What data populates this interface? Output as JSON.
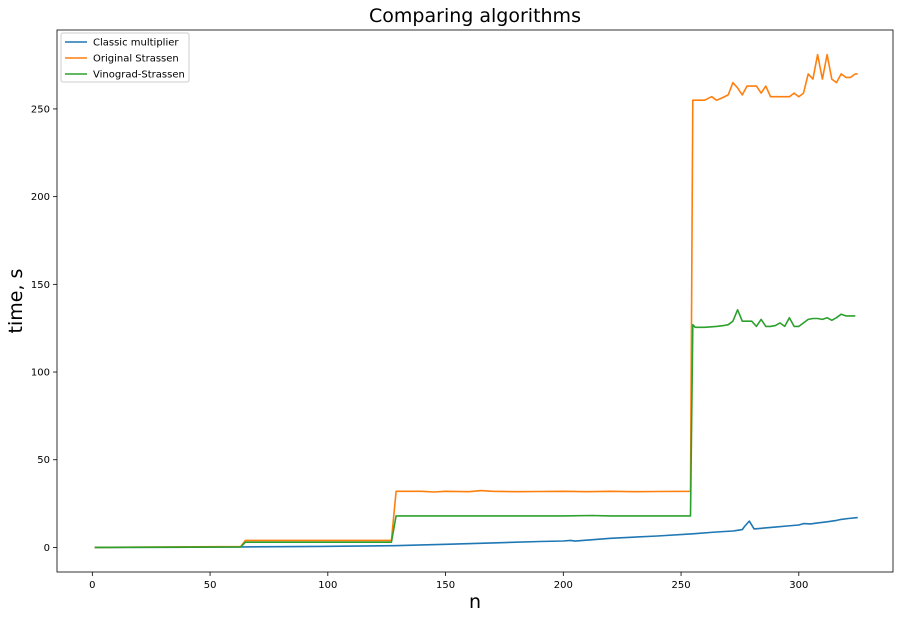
{
  "chart_data": {
    "type": "line",
    "title": "Comparing algorithms",
    "xlabel": "n",
    "ylabel": "time, s",
    "xlim": [
      -15,
      340
    ],
    "ylim": [
      -14,
      295
    ],
    "xticks": [
      0,
      50,
      100,
      150,
      200,
      250,
      300
    ],
    "yticks": [
      0,
      50,
      100,
      150,
      200,
      250
    ],
    "grid": false,
    "legend": "top-left",
    "series": [
      {
        "name": "Classic multiplier",
        "color": "#1f77b4",
        "x": [
          1,
          32,
          64,
          96,
          128,
          150,
          170,
          190,
          200,
          203,
          205,
          220,
          240,
          255,
          265,
          272,
          274,
          276,
          277,
          279,
          281,
          285,
          290,
          295,
          300,
          302,
          305,
          308,
          312,
          316,
          318,
          321,
          325
        ],
        "y": [
          0,
          0.1,
          0.3,
          0.6,
          1.0,
          1.8,
          2.6,
          3.4,
          3.7,
          4.0,
          3.6,
          5.2,
          6.5,
          7.8,
          8.8,
          9.4,
          9.8,
          10.2,
          12.0,
          15.0,
          10.6,
          11.0,
          11.6,
          12.2,
          12.8,
          13.6,
          13.4,
          14.0,
          14.6,
          15.4,
          16.0,
          16.5,
          17.0
        ]
      },
      {
        "name": "Original Strassen",
        "color": "#ff7f0e",
        "x": [
          1,
          63,
          65,
          127,
          129,
          140,
          145,
          150,
          160,
          165,
          170,
          180,
          190,
          200,
          210,
          220,
          230,
          240,
          254,
          255,
          256,
          260,
          263,
          265,
          267,
          270,
          272,
          274,
          276,
          278,
          280,
          282,
          284,
          286,
          288,
          290,
          292,
          294,
          296,
          298,
          300,
          302,
          304,
          306,
          308,
          310,
          312,
          314,
          316,
          318,
          320,
          322,
          324,
          325
        ],
        "y": [
          0,
          0.5,
          4.0,
          4.0,
          32.0,
          32.0,
          31.6,
          32.0,
          31.8,
          32.4,
          32.0,
          31.8,
          31.9,
          32.0,
          31.8,
          32.0,
          31.8,
          31.9,
          32.0,
          255.0,
          255.0,
          255.0,
          257.0,
          255.0,
          256.0,
          258.0,
          265.0,
          262.0,
          258.0,
          263.0,
          263.0,
          263.0,
          259.0,
          263.0,
          257.0,
          257.0,
          257.0,
          257.0,
          257.0,
          259.0,
          257.0,
          259.0,
          270.0,
          267.0,
          281.0,
          267.0,
          281.0,
          267.0,
          265.0,
          270.0,
          268.0,
          268.0,
          270.0,
          270.0
        ]
      },
      {
        "name": "Vinograd-Strassen",
        "color": "#2ca02c",
        "x": [
          1,
          63,
          65,
          127,
          129,
          150,
          170,
          190,
          200,
          212,
          220,
          240,
          254,
          255,
          256,
          260,
          265,
          268,
          270,
          272,
          274,
          276,
          278,
          280,
          282,
          284,
          286,
          288,
          290,
          292,
          294,
          296,
          298,
          300,
          302,
          304,
          306,
          308,
          310,
          312,
          314,
          316,
          318,
          320,
          322,
          324
        ],
        "y": [
          0,
          0.3,
          3.0,
          3.0,
          18.0,
          18.0,
          18.0,
          18.0,
          18.0,
          18.2,
          18.0,
          18.0,
          18.0,
          127.0,
          125.5,
          125.5,
          126.0,
          126.5,
          127.0,
          129.0,
          135.5,
          129.0,
          129.0,
          129.0,
          126.0,
          130.0,
          126.0,
          126.0,
          126.5,
          128.0,
          126.0,
          131.0,
          126.0,
          126.0,
          128.0,
          130.0,
          130.5,
          130.5,
          130.0,
          131.0,
          129.5,
          131.0,
          133.0,
          132.0,
          132.0,
          132.0
        ]
      }
    ]
  }
}
